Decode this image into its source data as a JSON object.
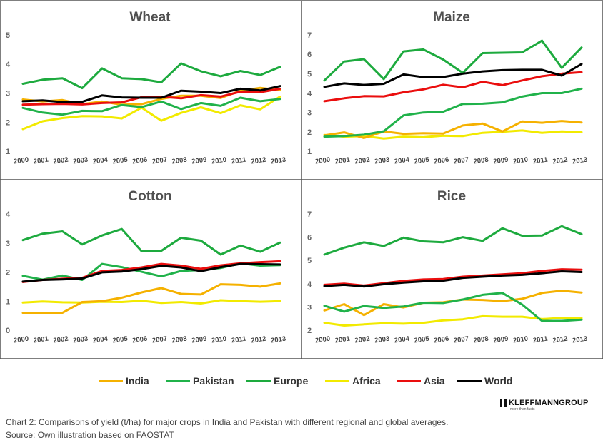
{
  "chart_data": [
    {
      "type": "line",
      "title": "Wheat",
      "x": [
        "2000",
        "2001",
        "2002",
        "2003",
        "2004",
        "2005",
        "2006",
        "2007",
        "2008",
        "2009",
        "2010",
        "2011",
        "2012",
        "2013"
      ],
      "ylim": [
        1,
        5
      ],
      "yticks": [
        1,
        2,
        3,
        4,
        5
      ],
      "grid": false,
      "series": [
        {
          "name": "India",
          "values": [
            2.78,
            2.71,
            2.76,
            2.62,
            2.71,
            2.6,
            2.62,
            2.8,
            2.91,
            2.91,
            2.83,
            3.08,
            3.18,
            3.1
          ]
        },
        {
          "name": "Pakistan",
          "values": [
            2.49,
            2.33,
            2.26,
            2.39,
            2.38,
            2.59,
            2.52,
            2.71,
            2.45,
            2.66,
            2.56,
            2.84,
            2.72,
            2.8
          ]
        },
        {
          "name": "Europe",
          "values": [
            3.32,
            3.46,
            3.51,
            3.17,
            3.85,
            3.51,
            3.48,
            3.37,
            4.02,
            3.75,
            3.58,
            3.76,
            3.62,
            3.9
          ]
        },
        {
          "name": "Africa",
          "values": [
            1.76,
            2.03,
            2.14,
            2.21,
            2.2,
            2.13,
            2.5,
            2.05,
            2.32,
            2.51,
            2.31,
            2.58,
            2.44,
            2.88
          ]
        },
        {
          "name": "Asia",
          "values": [
            2.6,
            2.62,
            2.63,
            2.61,
            2.66,
            2.68,
            2.86,
            2.87,
            2.82,
            2.93,
            2.88,
            3.05,
            3.03,
            3.15
          ]
        },
        {
          "name": "World",
          "values": [
            2.72,
            2.75,
            2.69,
            2.7,
            2.92,
            2.85,
            2.84,
            2.84,
            3.08,
            3.05,
            3.0,
            3.15,
            3.09,
            3.24
          ]
        }
      ]
    },
    {
      "type": "line",
      "title": "Maize",
      "x": [
        "2000",
        "2001",
        "2002",
        "2003",
        "2004",
        "2005",
        "2006",
        "2007",
        "2008",
        "2009",
        "2010",
        "2011",
        "2012",
        "2013"
      ],
      "ylim": [
        1,
        7
      ],
      "yticks": [
        1,
        2,
        3,
        4,
        5,
        6,
        7
      ],
      "grid": false,
      "series": [
        {
          "name": "India",
          "values": [
            1.82,
            1.97,
            1.68,
            2.02,
            1.9,
            1.93,
            1.91,
            2.33,
            2.43,
            2.02,
            2.54,
            2.47,
            2.56,
            2.48
          ]
        },
        {
          "name": "Pakistan",
          "values": [
            1.75,
            1.78,
            1.85,
            2.03,
            2.85,
            3.0,
            3.04,
            3.44,
            3.45,
            3.52,
            3.82,
            4.0,
            4.0,
            4.23
          ]
        },
        {
          "name": "Europe",
          "values": [
            4.65,
            5.63,
            5.75,
            4.72,
            6.15,
            6.25,
            5.73,
            5.04,
            6.06,
            6.08,
            6.1,
            6.7,
            5.3,
            6.35
          ]
        },
        {
          "name": "Africa",
          "values": [
            1.84,
            1.75,
            1.78,
            1.65,
            1.75,
            1.72,
            1.8,
            1.78,
            1.95,
            2.0,
            2.07,
            1.95,
            2.02,
            1.98
          ]
        },
        {
          "name": "Asia",
          "values": [
            3.58,
            3.73,
            3.84,
            3.83,
            4.04,
            4.19,
            4.43,
            4.3,
            4.58,
            4.41,
            4.65,
            4.87,
            5.0,
            5.08
          ]
        },
        {
          "name": "World",
          "values": [
            4.32,
            4.5,
            4.42,
            4.48,
            4.96,
            4.82,
            4.83,
            5.0,
            5.12,
            5.18,
            5.2,
            5.2,
            4.9,
            5.5
          ]
        }
      ]
    },
    {
      "type": "line",
      "title": "Cotton",
      "x": [
        "2000",
        "2001",
        "2002",
        "2003",
        "2004",
        "2005",
        "2006",
        "2007",
        "2008",
        "2009",
        "2010",
        "2011",
        "2012",
        "2013"
      ],
      "ylim": [
        0,
        4
      ],
      "yticks": [
        0,
        1,
        2,
        3,
        4
      ],
      "grid": false,
      "series": [
        {
          "name": "India",
          "values": [
            0.6,
            0.59,
            0.6,
            0.97,
            1.0,
            1.12,
            1.3,
            1.45,
            1.25,
            1.23,
            1.58,
            1.56,
            1.5,
            1.61
          ]
        },
        {
          "name": "Pakistan",
          "values": [
            1.87,
            1.74,
            1.88,
            1.73,
            2.28,
            2.17,
            2.01,
            1.85,
            2.04,
            2.07,
            2.14,
            2.3,
            2.22,
            2.24
          ]
        },
        {
          "name": "Europe",
          "values": [
            3.1,
            3.32,
            3.4,
            2.95,
            3.26,
            3.48,
            2.72,
            2.73,
            3.18,
            3.08,
            2.6,
            2.91,
            2.7,
            3.01
          ]
        },
        {
          "name": "Africa",
          "values": [
            0.95,
            0.99,
            0.96,
            0.95,
            0.98,
            0.97,
            1.01,
            0.94,
            0.97,
            0.92,
            1.03,
            1.0,
            0.98,
            1.0
          ]
        },
        {
          "name": "Asia",
          "values": [
            1.66,
            1.73,
            1.77,
            1.8,
            2.04,
            2.07,
            2.16,
            2.28,
            2.22,
            2.11,
            2.23,
            2.3,
            2.34,
            2.37
          ]
        },
        {
          "name": "World",
          "values": [
            1.67,
            1.73,
            1.75,
            1.78,
            1.99,
            2.02,
            2.1,
            2.21,
            2.16,
            2.03,
            2.17,
            2.28,
            2.27,
            2.26
          ]
        }
      ]
    },
    {
      "type": "line",
      "title": "Rice",
      "x": [
        "2000",
        "2001",
        "2002",
        "2003",
        "2004",
        "2005",
        "2006",
        "2007",
        "2008",
        "2009",
        "2010",
        "2011",
        "2012",
        "2013"
      ],
      "ylim": [
        2,
        7
      ],
      "yticks": [
        2,
        3,
        4,
        5,
        6,
        7
      ],
      "grid": false,
      "series": [
        {
          "name": "India",
          "values": [
            2.85,
            3.12,
            2.65,
            3.12,
            2.98,
            3.18,
            3.2,
            3.32,
            3.3,
            3.25,
            3.35,
            3.6,
            3.7,
            3.62
          ]
        },
        {
          "name": "Pakistan",
          "values": [
            3.05,
            2.8,
            3.04,
            2.96,
            3.02,
            3.18,
            3.17,
            3.32,
            3.52,
            3.6,
            3.1,
            2.4,
            2.4,
            2.45
          ]
        },
        {
          "name": "Europe",
          "values": [
            5.25,
            5.55,
            5.78,
            5.62,
            5.98,
            5.82,
            5.78,
            6.0,
            5.84,
            6.38,
            6.06,
            6.07,
            6.47,
            6.13
          ]
        },
        {
          "name": "Africa",
          "values": [
            2.32,
            2.2,
            2.25,
            2.3,
            2.28,
            2.32,
            2.42,
            2.47,
            2.6,
            2.58,
            2.58,
            2.48,
            2.53,
            2.52
          ]
        },
        {
          "name": "Asia",
          "values": [
            3.95,
            4.0,
            3.92,
            4.02,
            4.12,
            4.18,
            4.2,
            4.3,
            4.35,
            4.4,
            4.45,
            4.55,
            4.62,
            4.6
          ]
        },
        {
          "name": "World",
          "values": [
            3.9,
            3.95,
            3.88,
            3.98,
            4.05,
            4.1,
            4.13,
            4.25,
            4.3,
            4.35,
            4.38,
            4.45,
            4.53,
            4.5
          ]
        }
      ]
    }
  ],
  "legend": {
    "items": [
      {
        "label": "India",
        "color": "#F5B100"
      },
      {
        "label": "Pakistan",
        "color": "#20B24A"
      },
      {
        "label": "Europe",
        "color": "#1DAA3E"
      },
      {
        "label": "Africa",
        "color": "#F2EA00"
      },
      {
        "label": "Asia",
        "color": "#EA0E0E"
      },
      {
        "label": "World",
        "color": "#000000"
      }
    ]
  },
  "colors": {
    "India": "#F5B100",
    "Pakistan": "#20B24A",
    "Europe": "#1DAA3E",
    "Africa": "#F2EA00",
    "Asia": "#EA0E0E",
    "World": "#000000",
    "frame": "#555555"
  },
  "logo": {
    "name": "KLEFFMANNGROUP",
    "tagline": "more than facts"
  },
  "caption": "Chart 2: Comparisons of yield (t/ha) for major crops in India and Pakistan with different regional and global averages.",
  "source": "Source: Own illustration based on FAOSTAT"
}
